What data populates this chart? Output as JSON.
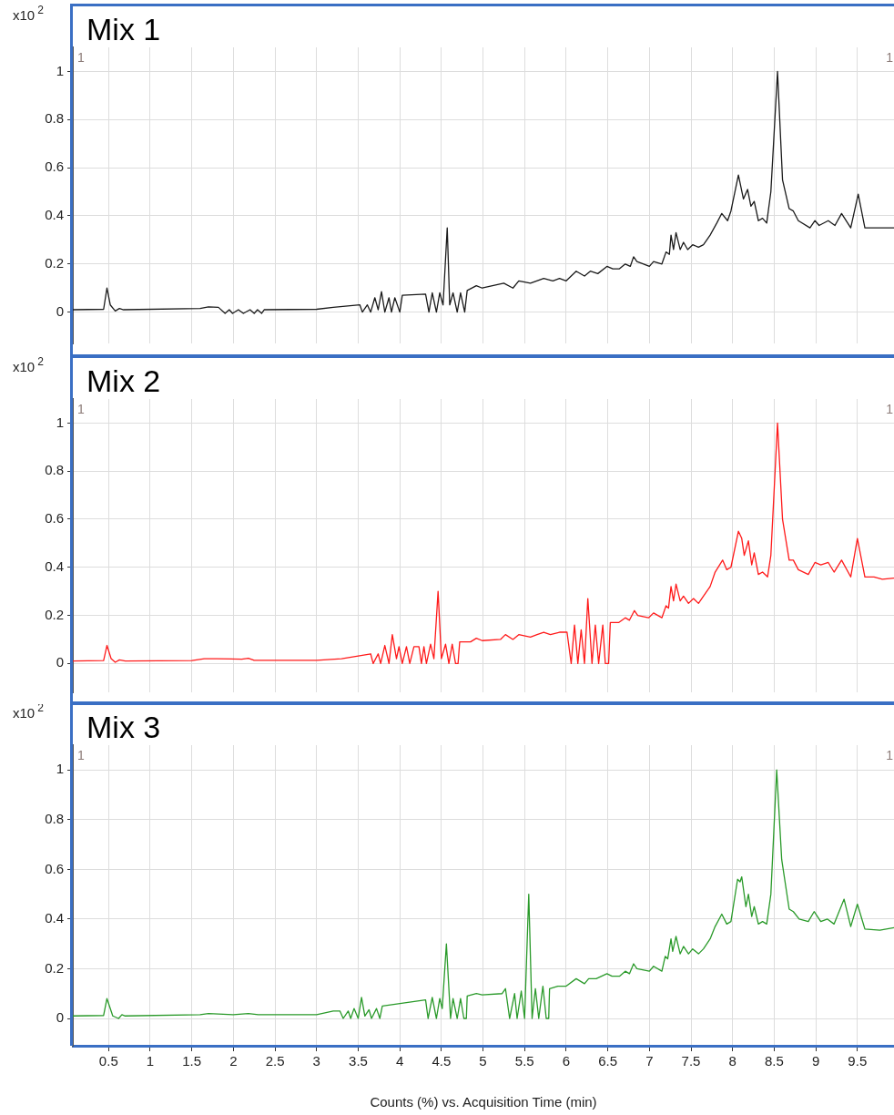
{
  "chart_data": [
    {
      "type": "line",
      "title": "Mix 1",
      "ylabel": "x10$^{2}$",
      "annotations": [
        "1",
        "1"
      ],
      "marker": "none",
      "grid": true,
      "tick_labels": "y",
      "x": [
        0.07,
        0.44,
        0.48,
        0.52,
        0.58,
        0.63,
        0.68,
        1.6,
        1.7,
        1.82,
        1.9,
        1.95,
        1.99,
        2.06,
        2.12,
        2.2,
        2.25,
        2.29,
        2.34,
        2.37,
        3.0,
        3.2,
        3.52,
        3.55,
        3.61,
        3.65,
        3.7,
        3.74,
        3.78,
        3.82,
        3.87,
        3.9,
        3.94,
        4.0,
        4.03,
        4.31,
        4.35,
        4.39,
        4.44,
        4.48,
        4.52,
        4.57,
        4.6,
        4.64,
        4.69,
        4.73,
        4.78,
        4.81,
        4.92,
        4.99,
        5.25,
        5.36,
        5.43,
        5.57,
        5.73,
        5.84,
        5.92,
        6.0,
        6.12,
        6.22,
        6.29,
        6.38,
        6.49,
        6.56,
        6.64,
        6.71,
        6.77,
        6.81,
        6.85,
        6.93,
        7.0,
        7.05,
        7.15,
        7.2,
        7.24,
        7.26,
        7.29,
        7.32,
        7.37,
        7.41,
        7.46,
        7.52,
        7.59,
        7.65,
        7.73,
        7.81,
        7.87,
        7.94,
        7.98,
        8.07,
        8.13,
        8.18,
        8.22,
        8.26,
        8.31,
        8.36,
        8.41,
        8.46,
        8.54,
        8.6,
        8.68,
        8.73,
        8.79,
        8.93,
        8.99,
        9.04,
        9.15,
        9.23,
        9.31,
        9.42,
        9.51,
        9.59,
        9.75,
        9.94
      ],
      "series": [
        {
          "color": "#1a1a1a",
          "values": [
            0.01,
            0.012,
            0.1,
            0.03,
            0.005,
            0.015,
            0.01,
            0.015,
            0.022,
            0.02,
            -0.005,
            0.01,
            -0.005,
            0.01,
            -0.005,
            0.01,
            -0.005,
            0.01,
            -0.005,
            0.01,
            0.012,
            0.02,
            0.03,
            0,
            0.03,
            0,
            0.06,
            0.01,
            0.085,
            0,
            0.06,
            0,
            0.06,
            0,
            0.07,
            0.075,
            0,
            0.08,
            0,
            0.08,
            0.03,
            0.35,
            0.03,
            0.08,
            0,
            0.08,
            0,
            0.09,
            0.11,
            0.1,
            0.12,
            0.1,
            0.13,
            0.12,
            0.14,
            0.13,
            0.14,
            0.13,
            0.17,
            0.15,
            0.17,
            0.16,
            0.19,
            0.18,
            0.18,
            0.2,
            0.19,
            0.23,
            0.21,
            0.2,
            0.19,
            0.21,
            0.2,
            0.25,
            0.24,
            0.32,
            0.26,
            0.33,
            0.26,
            0.29,
            0.26,
            0.28,
            0.27,
            0.28,
            0.32,
            0.37,
            0.41,
            0.38,
            0.42,
            0.57,
            0.47,
            0.51,
            0.44,
            0.46,
            0.38,
            0.39,
            0.37,
            0.5,
            1.0,
            0.55,
            0.43,
            0.42,
            0.38,
            0.35,
            0.38,
            0.36,
            0.38,
            0.36,
            0.41,
            0.35,
            0.49,
            0.35,
            0.35,
            0.35
          ]
        }
      ],
      "xlim": [
        0.07,
        9.94
      ],
      "xticks": [
        0.5,
        1,
        1.5,
        2,
        2.5,
        3,
        3.5,
        4,
        4.5,
        5,
        5.5,
        6,
        6.5,
        7,
        7.5,
        8,
        8.5,
        9,
        9.5
      ],
      "ylim": [
        -0.13,
        1.1
      ],
      "yticks": [
        0,
        0.2,
        0.4,
        0.6,
        0.8,
        1
      ]
    },
    {
      "type": "line",
      "title": "Mix 2",
      "ylabel": "x10$^{2}$",
      "annotations": [
        "1",
        "1"
      ],
      "marker": "none",
      "grid": true,
      "tick_labels": "y",
      "x": [
        0.07,
        0.44,
        0.48,
        0.53,
        0.58,
        0.63,
        0.7,
        1.5,
        1.65,
        1.8,
        2.1,
        2.18,
        2.25,
        3.0,
        3.3,
        3.65,
        3.68,
        3.74,
        3.77,
        3.82,
        3.87,
        3.91,
        3.96,
        3.99,
        4.03,
        4.08,
        4.12,
        4.17,
        4.23,
        4.26,
        4.29,
        4.32,
        4.37,
        4.41,
        4.46,
        4.5,
        4.55,
        4.59,
        4.63,
        4.67,
        4.7,
        4.72,
        4.85,
        4.92,
        4.99,
        5.21,
        5.27,
        5.36,
        5.43,
        5.57,
        5.65,
        5.73,
        5.81,
        5.92,
        6.01,
        6.06,
        6.1,
        6.14,
        6.18,
        6.22,
        6.26,
        6.31,
        6.35,
        6.39,
        6.44,
        6.47,
        6.51,
        6.53,
        6.63,
        6.71,
        6.76,
        6.82,
        6.86,
        6.99,
        7.05,
        7.15,
        7.2,
        7.23,
        7.26,
        7.29,
        7.32,
        7.37,
        7.41,
        7.47,
        7.53,
        7.59,
        7.65,
        7.73,
        7.79,
        7.88,
        7.93,
        7.98,
        8.07,
        8.11,
        8.14,
        8.19,
        8.23,
        8.26,
        8.31,
        8.36,
        8.42,
        8.46,
        8.54,
        8.6,
        8.68,
        8.73,
        8.79,
        8.91,
        8.99,
        9.06,
        9.15,
        9.22,
        9.31,
        9.42,
        9.5,
        9.59,
        9.7,
        9.8,
        9.94
      ],
      "series": [
        {
          "color": "#ff1a1a",
          "values": [
            0.01,
            0.012,
            0.075,
            0.02,
            0.005,
            0.015,
            0.01,
            0.012,
            0.02,
            0.02,
            0.018,
            0.022,
            0.013,
            0.013,
            0.02,
            0.04,
            0,
            0.04,
            0,
            0.075,
            0,
            0.12,
            0.02,
            0.07,
            0,
            0.07,
            0,
            0.07,
            0.07,
            0,
            0.07,
            0,
            0.08,
            0.02,
            0.3,
            0.02,
            0.08,
            0,
            0.08,
            0,
            0,
            0.09,
            0.09,
            0.105,
            0.095,
            0.1,
            0.12,
            0.1,
            0.12,
            0.11,
            0.12,
            0.13,
            0.12,
            0.13,
            0.13,
            0,
            0.16,
            0,
            0.14,
            0,
            0.27,
            0,
            0.16,
            0,
            0.16,
            0,
            0,
            0.17,
            0.17,
            0.19,
            0.18,
            0.22,
            0.2,
            0.19,
            0.21,
            0.19,
            0.24,
            0.23,
            0.32,
            0.26,
            0.33,
            0.26,
            0.28,
            0.25,
            0.27,
            0.25,
            0.28,
            0.32,
            0.38,
            0.43,
            0.39,
            0.4,
            0.55,
            0.52,
            0.45,
            0.51,
            0.41,
            0.46,
            0.37,
            0.38,
            0.36,
            0.45,
            1.0,
            0.6,
            0.43,
            0.43,
            0.39,
            0.37,
            0.42,
            0.41,
            0.42,
            0.38,
            0.43,
            0.36,
            0.52,
            0.36,
            0.36,
            0.35,
            0.355
          ]
        }
      ],
      "xlim": [
        0.07,
        9.94
      ],
      "xticks": [
        0.5,
        1,
        1.5,
        2,
        2.5,
        3,
        3.5,
        4,
        4.5,
        5,
        5.5,
        6,
        6.5,
        7,
        7.5,
        8,
        8.5,
        9,
        9.5
      ],
      "ylim": [
        -0.12,
        1.1
      ],
      "yticks": [
        0,
        0.2,
        0.4,
        0.6,
        0.8,
        1
      ]
    },
    {
      "type": "line",
      "title": "Mix 3",
      "ylabel": "x10$^{2}$",
      "xlabel": "Counts (%) vs. Acquisition Time (min)",
      "annotations": [
        "1",
        "1"
      ],
      "marker": "none",
      "grid": true,
      "x": [
        0.07,
        0.44,
        0.48,
        0.55,
        0.62,
        0.66,
        0.7,
        1.6,
        1.7,
        2.0,
        2.18,
        2.3,
        3.0,
        3.2,
        3.28,
        3.32,
        3.38,
        3.41,
        3.45,
        3.5,
        3.54,
        3.58,
        3.63,
        3.66,
        3.72,
        3.76,
        3.79,
        4.31,
        4.34,
        4.39,
        4.44,
        4.48,
        4.51,
        4.56,
        4.61,
        4.64,
        4.69,
        4.73,
        4.77,
        4.8,
        4.81,
        4.92,
        4.99,
        5.23,
        5.27,
        5.32,
        5.38,
        5.41,
        5.46,
        5.5,
        5.55,
        5.59,
        5.63,
        5.67,
        5.72,
        5.76,
        5.79,
        5.8,
        5.9,
        6.0,
        6.12,
        6.22,
        6.27,
        6.36,
        6.49,
        6.55,
        6.64,
        6.71,
        6.76,
        6.81,
        6.85,
        7.0,
        7.05,
        7.15,
        7.19,
        7.22,
        7.26,
        7.28,
        7.32,
        7.37,
        7.41,
        7.47,
        7.52,
        7.59,
        7.65,
        7.73,
        7.79,
        7.87,
        7.93,
        7.98,
        8.06,
        8.09,
        8.11,
        8.16,
        8.19,
        8.23,
        8.26,
        8.31,
        8.36,
        8.41,
        8.46,
        8.53,
        8.59,
        8.68,
        8.73,
        8.8,
        8.91,
        8.98,
        9.06,
        9.14,
        9.22,
        9.34,
        9.42,
        9.5,
        9.59,
        9.77,
        9.94
      ],
      "series": [
        {
          "color": "#2a9a2a",
          "values": [
            0.01,
            0.012,
            0.08,
            0.01,
            0,
            0.015,
            0.01,
            0.015,
            0.02,
            0.015,
            0.02,
            0.015,
            0.015,
            0.03,
            0.03,
            0,
            0.03,
            0,
            0.04,
            0,
            0.085,
            0.01,
            0.035,
            0,
            0.04,
            0,
            0.05,
            0.075,
            0,
            0.085,
            0,
            0.08,
            0.04,
            0.3,
            0,
            0.08,
            0,
            0.08,
            0,
            0,
            0.09,
            0.1,
            0.095,
            0.1,
            0.12,
            0,
            0.1,
            0,
            0.11,
            0,
            0.5,
            0,
            0.12,
            0,
            0.13,
            0,
            0,
            0.12,
            0.13,
            0.13,
            0.16,
            0.14,
            0.16,
            0.16,
            0.18,
            0.17,
            0.17,
            0.19,
            0.18,
            0.22,
            0.2,
            0.19,
            0.21,
            0.19,
            0.25,
            0.24,
            0.32,
            0.27,
            0.33,
            0.26,
            0.29,
            0.26,
            0.28,
            0.26,
            0.28,
            0.32,
            0.37,
            0.42,
            0.38,
            0.39,
            0.56,
            0.55,
            0.57,
            0.45,
            0.5,
            0.41,
            0.45,
            0.38,
            0.39,
            0.38,
            0.5,
            1.0,
            0.64,
            0.44,
            0.43,
            0.4,
            0.39,
            0.43,
            0.39,
            0.4,
            0.38,
            0.48,
            0.37,
            0.46,
            0.36,
            0.355,
            0.365
          ]
        }
      ],
      "xlim": [
        0.07,
        9.94
      ],
      "xticks": [
        0.5,
        1,
        1.5,
        2,
        2.5,
        3,
        3.5,
        4,
        4.5,
        5,
        5.5,
        6,
        6.5,
        7,
        7.5,
        8,
        8.5,
        9,
        9.5
      ],
      "ylim": [
        -0.11,
        1.1
      ],
      "yticks": [
        0,
        0.2,
        0.4,
        0.6,
        0.8,
        1
      ]
    }
  ]
}
